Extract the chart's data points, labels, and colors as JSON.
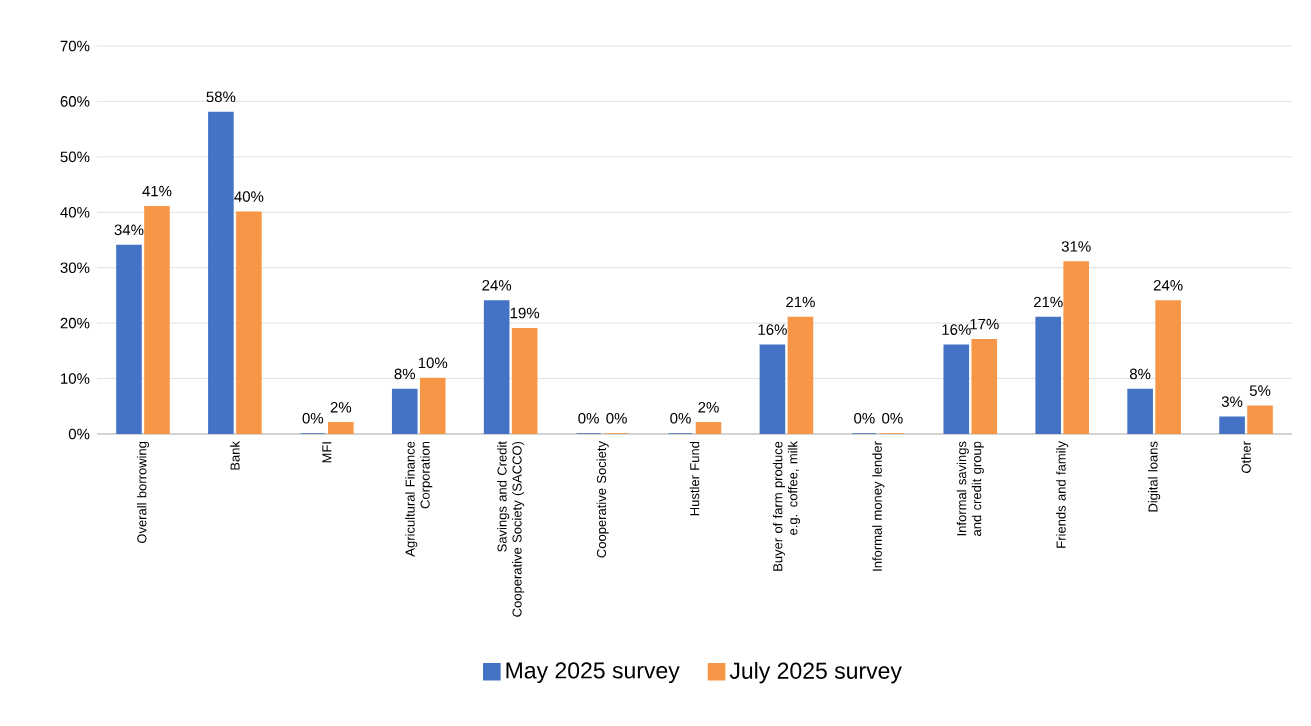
{
  "chart_data": {
    "type": "bar",
    "categories": [
      "Overall borrowing",
      "Bank",
      "MFI",
      "Agricultural Finance Corporation",
      "Savings and Credit Cooperative Society (SACCO)",
      "Cooperative Society",
      "Hustler Fund",
      "Buyer of farm produce e.g. coffee, milk",
      "Informal money lender",
      "Informal savings and credit group",
      "Friends and family",
      "Digital loans",
      "Other"
    ],
    "series": [
      {
        "name": "May 2025 survey",
        "color": "#4472c4",
        "values": [
          34,
          58,
          0,
          8,
          24,
          0,
          0,
          16,
          0,
          16,
          21,
          8,
          3
        ],
        "value_labels": [
          "34%",
          "58%",
          "0%",
          "8%",
          "24%",
          "0%",
          "0%",
          "16%",
          "0%",
          "16%",
          "21%",
          "8%",
          "3%"
        ]
      },
      {
        "name": "July 2025 survey",
        "color": "#f79646",
        "values": [
          41,
          40,
          2,
          10,
          19,
          0,
          2,
          21,
          0,
          17,
          31,
          24,
          5
        ],
        "value_labels": [
          "41%",
          "40%",
          "2%",
          "10%",
          "19%",
          "0%",
          "2%",
          "21%",
          "0%",
          "17%",
          "31%",
          "24%",
          "5%"
        ]
      }
    ],
    "ylim": [
      0,
      70
    ],
    "yticks": [
      {
        "value": 0,
        "label": "0%"
      },
      {
        "value": 10,
        "label": "10%"
      },
      {
        "value": 20,
        "label": "20%"
      },
      {
        "value": 30,
        "label": "30%"
      },
      {
        "value": 40,
        "label": "40%"
      },
      {
        "value": 50,
        "label": "50%"
      },
      {
        "value": 60,
        "label": "60%"
      },
      {
        "value": 70,
        "label": "70%"
      }
    ],
    "grid": "y",
    "legend": "bottom"
  }
}
